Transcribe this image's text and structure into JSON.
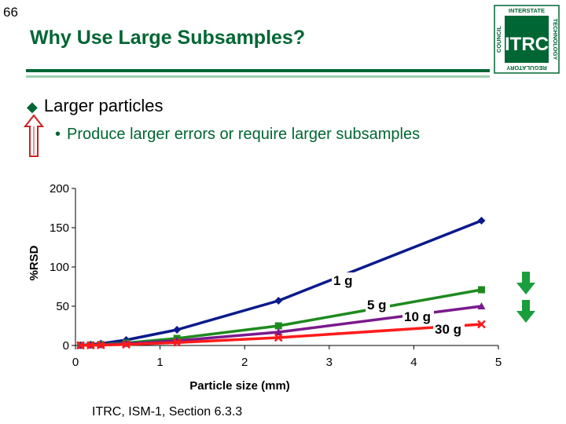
{
  "slide_number": "66",
  "title": "Why Use Large Subsamples?",
  "bullets": {
    "level1": "Larger particles",
    "level2": "Produce larger errors or require larger subsamples"
  },
  "logo": {
    "word": "ITRC",
    "ring_top": "INTERSTATE",
    "ring_right": "TECHNOLOGY",
    "ring_bottom": "REGULATORY",
    "ring_left": "COUNCIL"
  },
  "footer": "ITRC, ISM-1, Section 6.3.3",
  "colors": {
    "brand": "#006633",
    "down_arrows": "#1a9e3c"
  },
  "chart_data": {
    "type": "line",
    "xlabel": "Particle size (mm)",
    "ylabel": "%RSD",
    "xlim": [
      0,
      5
    ],
    "ylim": [
      0,
      200
    ],
    "xticks": [
      0,
      1,
      2,
      3,
      4,
      5
    ],
    "yticks": [
      0,
      50,
      100,
      150,
      200
    ],
    "grid": false,
    "series": [
      {
        "name": "1 g",
        "color": "#0a1a8c",
        "marker": "diamond",
        "x": [
          0.06,
          0.18,
          0.3,
          0.6,
          1.2,
          2.4,
          4.8
        ],
        "y": [
          0.4,
          1.2,
          2.4,
          7,
          20,
          57,
          159
        ]
      },
      {
        "name": "5 g",
        "color": "#1f8a1f",
        "marker": "square",
        "x": [
          0.06,
          0.18,
          0.3,
          0.6,
          1.2,
          2.4,
          4.8
        ],
        "y": [
          0.2,
          0.6,
          1.2,
          3.2,
          9,
          25,
          71
        ]
      },
      {
        "name": "10 g",
        "color": "#7a1a8c",
        "marker": "triangle",
        "x": [
          0.06,
          0.18,
          0.3,
          0.6,
          1.2,
          2.4,
          4.8
        ],
        "y": [
          0.1,
          0.4,
          0.8,
          2.2,
          6,
          17,
          50
        ]
      },
      {
        "name": "30 g",
        "color": "#ff1a1a",
        "marker": "x",
        "x": [
          0.06,
          0.18,
          0.3,
          0.6,
          1.2,
          2.4,
          4.8
        ],
        "y": [
          0.1,
          0.3,
          0.5,
          1.3,
          3.7,
          10,
          27
        ]
      }
    ]
  }
}
